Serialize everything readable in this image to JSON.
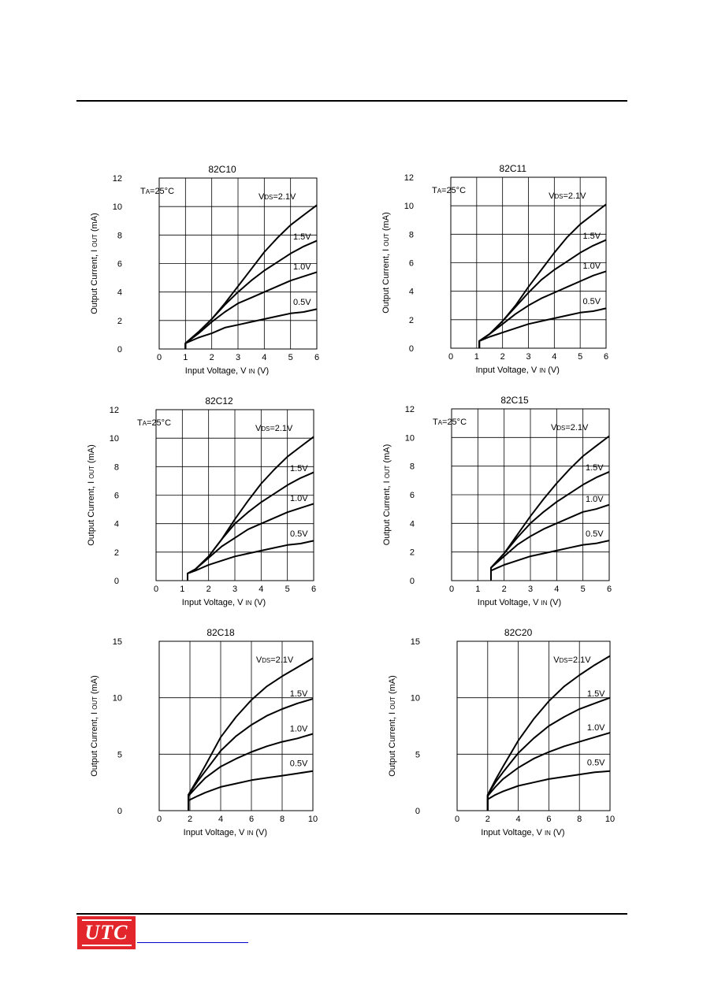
{
  "logo": {
    "text": "UTC"
  },
  "chart_data": [
    {
      "type": "line",
      "title": "82C10",
      "xlabel": "Input Voltage, V IN (V)",
      "ylabel": "Output Current, I OUT (mA)",
      "xlim": [
        0,
        6
      ],
      "ylim": [
        0,
        12
      ],
      "xticks": [
        0,
        1,
        2,
        3,
        4,
        5,
        6
      ],
      "yticks": [
        0,
        2,
        4,
        6,
        8,
        10,
        12
      ],
      "grid": true,
      "temp_label": "TA=25°C",
      "vds_label": "VDS=2.1V",
      "series": [
        {
          "name": "VDS=2.1V",
          "x": [
            1.0,
            1.5,
            2.0,
            2.5,
            3.0,
            3.5,
            4.0,
            4.5,
            5.0,
            5.5,
            6.0
          ],
          "y": [
            0.4,
            1.2,
            2.1,
            3.2,
            4.4,
            5.6,
            6.8,
            7.8,
            8.7,
            9.4,
            10.1
          ]
        },
        {
          "name": "1.5V",
          "x": [
            1.0,
            1.5,
            2.0,
            2.5,
            3.0,
            3.5,
            4.0,
            4.5,
            5.0,
            5.5,
            6.0
          ],
          "y": [
            0.4,
            1.2,
            2.1,
            3.1,
            4.0,
            4.8,
            5.5,
            6.1,
            6.7,
            7.2,
            7.6
          ]
        },
        {
          "name": "1.0V",
          "x": [
            1.0,
            1.5,
            2.0,
            2.5,
            3.0,
            3.5,
            4.0,
            4.5,
            5.0,
            5.5,
            6.0
          ],
          "y": [
            0.4,
            1.1,
            1.9,
            2.6,
            3.2,
            3.6,
            4.0,
            4.4,
            4.8,
            5.1,
            5.4
          ]
        },
        {
          "name": "0.5V",
          "x": [
            1.0,
            1.5,
            2.0,
            2.5,
            3.0,
            3.5,
            4.0,
            4.5,
            5.0,
            5.5,
            6.0
          ],
          "y": [
            0.4,
            0.8,
            1.1,
            1.5,
            1.7,
            1.9,
            2.1,
            2.3,
            2.5,
            2.6,
            2.8
          ]
        }
      ]
    },
    {
      "type": "line",
      "title": "82C11",
      "xlabel": "Input Voltage, V IN (V)",
      "ylabel": "Output Current, I OUT (mA)",
      "xlim": [
        0,
        6
      ],
      "ylim": [
        0,
        12
      ],
      "xticks": [
        0,
        1,
        2,
        3,
        4,
        5,
        6
      ],
      "yticks": [
        0,
        2,
        4,
        6,
        8,
        10,
        12
      ],
      "grid": true,
      "temp_label": "TA=25°C",
      "vds_label": "VDS=2.1V",
      "series": [
        {
          "name": "VDS=2.1V",
          "x": [
            1.1,
            1.5,
            2.0,
            2.5,
            3.0,
            3.5,
            4.0,
            4.5,
            5.0,
            5.5,
            6.0
          ],
          "y": [
            0.5,
            1.0,
            1.9,
            3.0,
            4.3,
            5.5,
            6.7,
            7.8,
            8.7,
            9.4,
            10.1
          ]
        },
        {
          "name": "1.5V",
          "x": [
            1.1,
            1.5,
            2.0,
            2.5,
            3.0,
            3.5,
            4.0,
            4.5,
            5.0,
            5.5,
            6.0
          ],
          "y": [
            0.5,
            1.0,
            1.9,
            2.9,
            3.9,
            4.8,
            5.5,
            6.1,
            6.7,
            7.2,
            7.6
          ]
        },
        {
          "name": "1.0V",
          "x": [
            1.1,
            1.5,
            2.0,
            2.5,
            3.0,
            3.5,
            4.0,
            4.5,
            5.0,
            5.5,
            6.0
          ],
          "y": [
            0.5,
            1.0,
            1.7,
            2.4,
            3.0,
            3.5,
            3.9,
            4.3,
            4.7,
            5.1,
            5.4
          ]
        },
        {
          "name": "0.5V",
          "x": [
            1.1,
            1.5,
            2.0,
            2.5,
            3.0,
            3.5,
            4.0,
            4.5,
            5.0,
            5.5,
            6.0
          ],
          "y": [
            0.5,
            0.8,
            1.1,
            1.4,
            1.7,
            1.9,
            2.1,
            2.3,
            2.5,
            2.6,
            2.8
          ]
        }
      ]
    },
    {
      "type": "line",
      "title": "82C12",
      "xlabel": "Input Voltage, V IN (V)",
      "ylabel": "Output Current, I OUT (mA)",
      "xlim": [
        0,
        6
      ],
      "ylim": [
        0,
        12
      ],
      "xticks": [
        0,
        1,
        2,
        3,
        4,
        5,
        6
      ],
      "yticks": [
        0,
        2,
        4,
        6,
        8,
        10,
        12
      ],
      "grid": true,
      "temp_label": "TA=25°C",
      "vds_label": "VDS=2.1V",
      "series": [
        {
          "name": "VDS=2.1V",
          "x": [
            1.2,
            1.5,
            2.0,
            2.5,
            3.0,
            3.5,
            4.0,
            4.5,
            5.0,
            5.5,
            6.0
          ],
          "y": [
            0.5,
            0.8,
            1.7,
            2.9,
            4.3,
            5.6,
            6.8,
            7.8,
            8.7,
            9.4,
            10.1
          ]
        },
        {
          "name": "1.5V",
          "x": [
            1.2,
            1.5,
            2.0,
            2.5,
            3.0,
            3.5,
            4.0,
            4.5,
            5.0,
            5.5,
            6.0
          ],
          "y": [
            0.5,
            0.8,
            1.7,
            2.9,
            4.0,
            4.8,
            5.5,
            6.1,
            6.7,
            7.2,
            7.6
          ]
        },
        {
          "name": "1.0V",
          "x": [
            1.2,
            1.5,
            2.0,
            2.5,
            3.0,
            3.5,
            4.0,
            4.5,
            5.0,
            5.5,
            6.0
          ],
          "y": [
            0.5,
            0.8,
            1.6,
            2.4,
            3.0,
            3.6,
            4.0,
            4.4,
            4.8,
            5.1,
            5.4
          ]
        },
        {
          "name": "0.5V",
          "x": [
            1.2,
            1.5,
            2.0,
            2.5,
            3.0,
            3.5,
            4.0,
            4.5,
            5.0,
            5.5,
            6.0
          ],
          "y": [
            0.5,
            0.7,
            1.1,
            1.4,
            1.7,
            1.9,
            2.1,
            2.3,
            2.5,
            2.6,
            2.8
          ]
        }
      ]
    },
    {
      "type": "line",
      "title": "82C15",
      "xlabel": "Input Voltage, V IN (V)",
      "ylabel": "Output Current, I OUT (mA)",
      "xlim": [
        0,
        6
      ],
      "ylim": [
        0,
        12
      ],
      "xticks": [
        0,
        1,
        2,
        3,
        4,
        5,
        6
      ],
      "yticks": [
        0,
        2,
        4,
        6,
        8,
        10,
        12
      ],
      "grid": true,
      "temp_label": "TA=25°C",
      "vds_label": "VDS=2.1V",
      "series": [
        {
          "name": "VDS=2.1V",
          "x": [
            1.5,
            2.0,
            2.5,
            3.0,
            3.5,
            4.0,
            4.5,
            5.0,
            5.5,
            6.0
          ],
          "y": [
            0.9,
            1.9,
            3.2,
            4.5,
            5.7,
            6.8,
            7.8,
            8.7,
            9.4,
            10.1
          ]
        },
        {
          "name": "1.5V",
          "x": [
            1.5,
            2.0,
            2.5,
            3.0,
            3.5,
            4.0,
            4.5,
            5.0,
            5.5,
            6.0
          ],
          "y": [
            0.9,
            1.9,
            3.0,
            4.0,
            4.8,
            5.5,
            6.1,
            6.7,
            7.2,
            7.6
          ]
        },
        {
          "name": "1.0V",
          "x": [
            1.5,
            2.0,
            2.5,
            3.0,
            3.5,
            4.0,
            4.5,
            5.0,
            5.5,
            6.0
          ],
          "y": [
            0.9,
            1.7,
            2.5,
            3.1,
            3.6,
            4.0,
            4.4,
            4.8,
            5.0,
            5.3
          ]
        },
        {
          "name": "0.5V",
          "x": [
            1.5,
            2.0,
            2.5,
            3.0,
            3.5,
            4.0,
            4.5,
            5.0,
            5.5,
            6.0
          ],
          "y": [
            0.7,
            1.1,
            1.4,
            1.7,
            1.9,
            2.1,
            2.3,
            2.5,
            2.6,
            2.8
          ]
        }
      ]
    },
    {
      "type": "line",
      "title": "82C18",
      "xlabel": "Input Voltage, V IN (V)",
      "ylabel": "Output Current, I OUT (mA)",
      "xlim": [
        0,
        10
      ],
      "ylim": [
        0,
        15
      ],
      "xticks": [
        0,
        2,
        4,
        6,
        8,
        10
      ],
      "yticks": [
        0,
        5,
        10,
        15
      ],
      "grid": true,
      "temp_label": "",
      "vds_label": "VDS=2.1V",
      "series": [
        {
          "name": "VDS=2.1V",
          "x": [
            1.9,
            2.5,
            3.0,
            4.0,
            5.0,
            6.0,
            7.0,
            8.0,
            9.0,
            10.0
          ],
          "y": [
            1.4,
            2.8,
            4.0,
            6.5,
            8.3,
            9.8,
            11.0,
            11.9,
            12.7,
            13.5
          ]
        },
        {
          "name": "1.5V",
          "x": [
            1.9,
            2.5,
            3.0,
            4.0,
            5.0,
            6.0,
            7.0,
            8.0,
            9.0,
            10.0
          ],
          "y": [
            1.4,
            2.6,
            3.5,
            5.3,
            6.6,
            7.6,
            8.4,
            9.0,
            9.5,
            9.9
          ]
        },
        {
          "name": "1.0V",
          "x": [
            1.9,
            2.5,
            3.0,
            4.0,
            5.0,
            6.0,
            7.0,
            8.0,
            9.0,
            10.0
          ],
          "y": [
            1.3,
            2.2,
            2.9,
            3.9,
            4.6,
            5.2,
            5.7,
            6.1,
            6.4,
            6.8
          ]
        },
        {
          "name": "0.5V",
          "x": [
            1.9,
            2.5,
            3.0,
            4.0,
            5.0,
            6.0,
            7.0,
            8.0,
            9.0,
            10.0
          ],
          "y": [
            0.9,
            1.3,
            1.6,
            2.1,
            2.4,
            2.7,
            2.9,
            3.1,
            3.3,
            3.5
          ]
        }
      ]
    },
    {
      "type": "line",
      "title": "82C20",
      "xlabel": "Input Voltage, V IN (V)",
      "ylabel": "Output Current, I OUT (mA)",
      "xlim": [
        0,
        10
      ],
      "ylim": [
        0,
        15
      ],
      "xticks": [
        0,
        2,
        4,
        6,
        8,
        10
      ],
      "yticks": [
        0,
        5,
        10,
        15
      ],
      "grid": true,
      "temp_label": "",
      "vds_label": "VDS=2.1V",
      "series": [
        {
          "name": "VDS=2.1V",
          "x": [
            2.0,
            2.5,
            3.0,
            4.0,
            5.0,
            6.0,
            7.0,
            8.0,
            9.0,
            10.0
          ],
          "y": [
            1.4,
            2.7,
            3.9,
            6.2,
            8.1,
            9.7,
            11.0,
            12.0,
            12.9,
            13.7
          ]
        },
        {
          "name": "1.5V",
          "x": [
            2.0,
            2.5,
            3.0,
            4.0,
            5.0,
            6.0,
            7.0,
            8.0,
            9.0,
            10.0
          ],
          "y": [
            1.4,
            2.5,
            3.4,
            5.1,
            6.4,
            7.5,
            8.3,
            9.0,
            9.5,
            10.0
          ]
        },
        {
          "name": "1.0V",
          "x": [
            2.0,
            2.5,
            3.0,
            4.0,
            5.0,
            6.0,
            7.0,
            8.0,
            9.0,
            10.0
          ],
          "y": [
            1.3,
            2.1,
            2.8,
            3.8,
            4.6,
            5.2,
            5.7,
            6.1,
            6.5,
            6.9
          ]
        },
        {
          "name": "0.5V",
          "x": [
            2.0,
            2.5,
            3.0,
            4.0,
            5.0,
            6.0,
            7.0,
            8.0,
            9.0,
            10.0
          ],
          "y": [
            1.0,
            1.4,
            1.7,
            2.2,
            2.5,
            2.8,
            3.0,
            3.2,
            3.4,
            3.5
          ]
        }
      ]
    }
  ]
}
